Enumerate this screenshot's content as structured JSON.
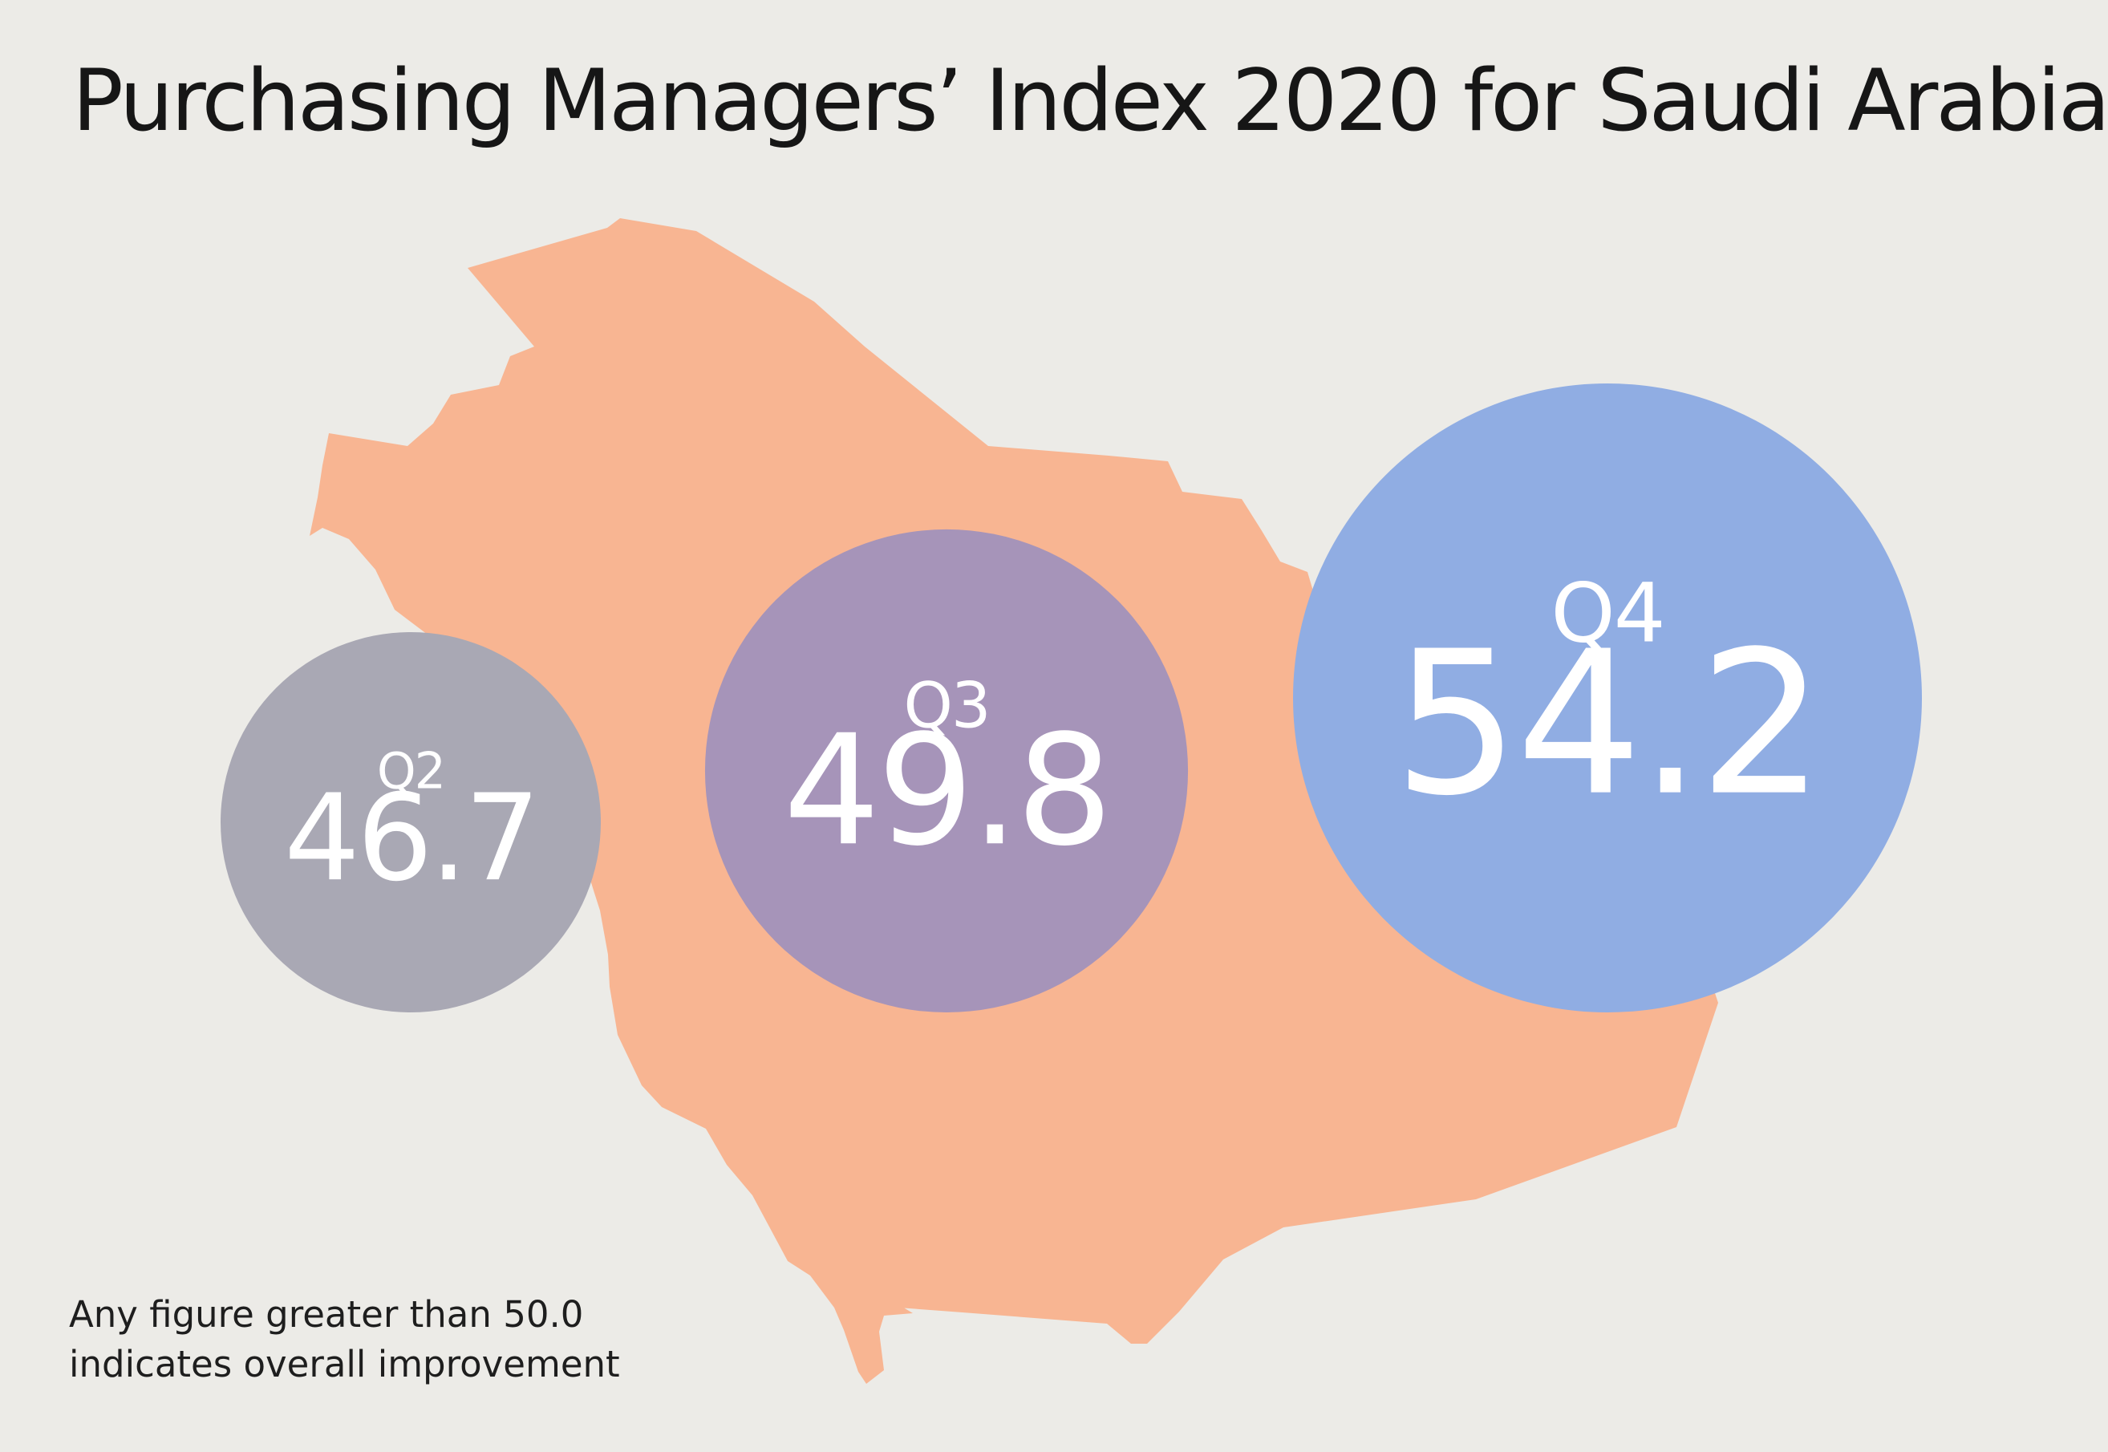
{
  "title": "Purchasing Managers’ Index 2020 for Saudi Arabia",
  "footnote": {
    "line1": "Any figure greater than 50.0",
    "line2": "indicates overall improvement"
  },
  "chart_data": {
    "type": "bubble",
    "title": "Purchasing Managers’ Index 2020 for Saudi Arabia",
    "threshold": 50.0,
    "background_map": "Saudi Arabia",
    "categories": [
      "Q2",
      "Q3",
      "Q4"
    ],
    "values": [
      46.7,
      49.8,
      54.2
    ],
    "labels": [
      "46.7",
      "49.8",
      "54.2"
    ],
    "colors": [
      "#a9a8b4",
      "#a694b9",
      "#90ade3"
    ],
    "map_color": "#f8b592",
    "background_color": "#ecebe7"
  }
}
